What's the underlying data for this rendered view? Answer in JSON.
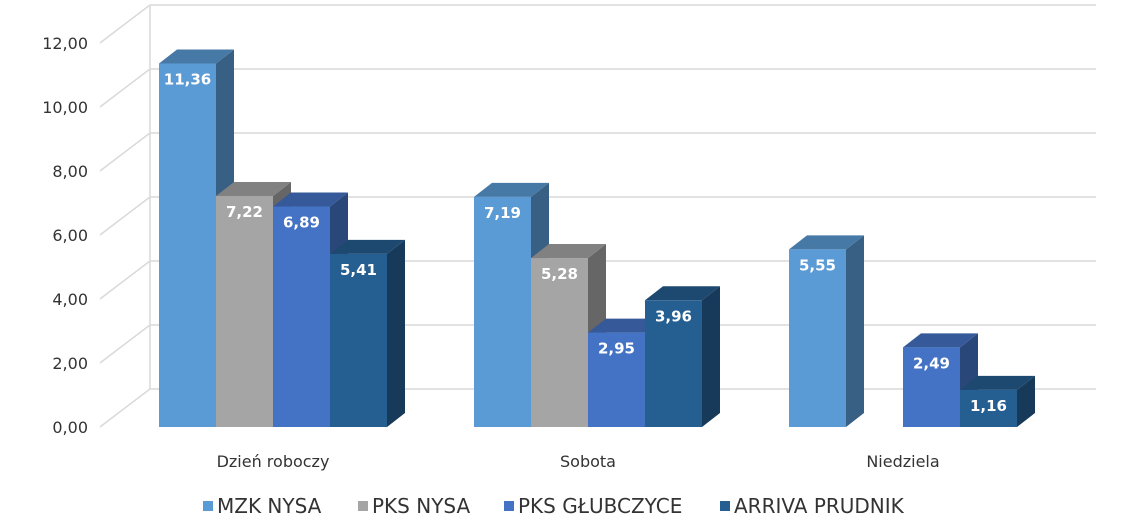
{
  "chart_data": {
    "type": "bar",
    "categories": [
      "Dzień roboczy",
      "Sobota",
      "Niedziela"
    ],
    "series": [
      {
        "name": "MZK NYSA",
        "color": "#5B9BD5",
        "values": [
          11.36,
          7.19,
          5.55
        ],
        "labels": [
          "11,36",
          "7,19",
          "5,55"
        ]
      },
      {
        "name": "PKS NYSA",
        "color": "#A5A5A5",
        "values": [
          7.22,
          5.28,
          null
        ],
        "labels": [
          "7,22",
          "5,28",
          ""
        ]
      },
      {
        "name": "PKS GŁUBCZYCE",
        "color": "#4472C4",
        "values": [
          6.89,
          2.95,
          2.49
        ],
        "labels": [
          "6,89",
          "2,95",
          "2,49"
        ]
      },
      {
        "name": "ARRIVA PRUDNIK",
        "color": "#255E91",
        "values": [
          5.41,
          3.96,
          1.16
        ],
        "labels": [
          "5,41",
          "3,96",
          "1,16"
        ]
      }
    ],
    "y_ticks": [
      "0,00",
      "2,00",
      "4,00",
      "6,00",
      "8,00",
      "10,00",
      "12,00"
    ],
    "ylim": [
      0,
      12
    ],
    "grid": true,
    "legend_position": "bottom",
    "style": "3d-clustered-column"
  }
}
